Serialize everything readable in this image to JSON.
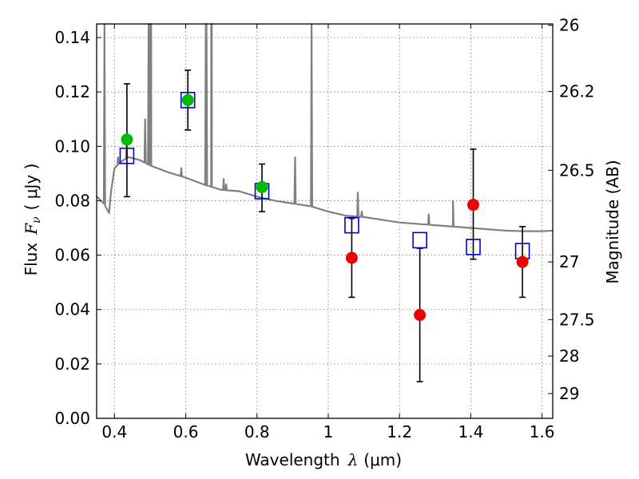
{
  "chart_data": {
    "type": "scatter",
    "xlabel_prefix": "Wavelength",
    "xlabel_symbol": "λ",
    "xlabel_unit": "(μm)",
    "ylabel_prefix": "Flux",
    "ylabel_symbol": "F",
    "ylabel_sub": "ν",
    "ylabel_unit": "( μJy )",
    "ylabel_right": "Magnitude (AB)",
    "xlim": [
      0.35,
      1.63
    ],
    "ylim": [
      0.0,
      0.145
    ],
    "grid": true,
    "x_ticks": [
      {
        "value": 0.4,
        "label": "0.4"
      },
      {
        "value": 0.6,
        "label": "0.6"
      },
      {
        "value": 0.8,
        "label": "0.8"
      },
      {
        "value": 1.0,
        "label": "1"
      },
      {
        "value": 1.2,
        "label": "1.2"
      },
      {
        "value": 1.4,
        "label": "1.4"
      },
      {
        "value": 1.6,
        "label": "1.6"
      }
    ],
    "y_ticks": [
      {
        "value": 0.0,
        "label": "0.00"
      },
      {
        "value": 0.02,
        "label": "0.02"
      },
      {
        "value": 0.04,
        "label": "0.04"
      },
      {
        "value": 0.06,
        "label": "0.06"
      },
      {
        "value": 0.08,
        "label": "0.08"
      },
      {
        "value": 0.1,
        "label": "0.10"
      },
      {
        "value": 0.12,
        "label": "0.12"
      },
      {
        "value": 0.14,
        "label": "0.14"
      }
    ],
    "right_ticks": [
      {
        "flux": 0.1445,
        "label": "26"
      },
      {
        "flux": 0.1202,
        "label": "26.2"
      },
      {
        "flux": 0.0912,
        "label": "26.5"
      },
      {
        "flux": 0.0575,
        "label": "27"
      },
      {
        "flux": 0.0363,
        "label": "27.5"
      },
      {
        "flux": 0.0229,
        "label": "28"
      },
      {
        "flux": 0.0091,
        "label": "29"
      }
    ],
    "colors": {
      "spectrum": "#808080",
      "detected": "#00bb00",
      "nondetected": "#ee0000",
      "model": "#0000cc",
      "errorbar": "#000000",
      "grid": "#777777"
    },
    "series": [
      {
        "marker": "green-circle",
        "points": [
          {
            "x": 0.435,
            "y": 0.1025,
            "err_lo": 0.0815,
            "err_hi": 0.123
          },
          {
            "x": 0.606,
            "y": 0.117,
            "err_lo": 0.106,
            "err_hi": 0.128
          },
          {
            "x": 0.814,
            "y": 0.085,
            "err_lo": 0.076,
            "err_hi": 0.0935
          }
        ]
      },
      {
        "marker": "red-circle",
        "points": [
          {
            "x": 1.066,
            "y": 0.059,
            "err_lo": 0.0445,
            "err_hi": 0.0735
          },
          {
            "x": 1.257,
            "y": 0.038,
            "err_lo": 0.0135,
            "err_hi": 0.0625
          },
          {
            "x": 1.407,
            "y": 0.0785,
            "err_lo": 0.0585,
            "err_hi": 0.099
          },
          {
            "x": 1.545,
            "y": 0.0575,
            "err_lo": 0.0445,
            "err_hi": 0.0705
          }
        ]
      },
      {
        "marker": "blue-open-square",
        "points": [
          {
            "x": 0.435,
            "y": 0.0965
          },
          {
            "x": 0.606,
            "y": 0.117
          },
          {
            "x": 0.814,
            "y": 0.0835
          },
          {
            "x": 1.066,
            "y": 0.071
          },
          {
            "x": 1.257,
            "y": 0.0655
          },
          {
            "x": 1.407,
            "y": 0.063
          },
          {
            "x": 1.545,
            "y": 0.0615
          }
        ]
      },
      {
        "marker": "line",
        "continuum": [
          [
            0.35,
            0.0815
          ],
          [
            0.37,
            0.079
          ],
          [
            0.385,
            0.0755
          ],
          [
            0.39,
            0.083
          ],
          [
            0.4,
            0.092
          ],
          [
            0.42,
            0.0945
          ],
          [
            0.44,
            0.096
          ],
          [
            0.47,
            0.095
          ],
          [
            0.5,
            0.093
          ],
          [
            0.55,
            0.0905
          ],
          [
            0.6,
            0.0885
          ],
          [
            0.65,
            0.086
          ],
          [
            0.7,
            0.084
          ],
          [
            0.75,
            0.0835
          ],
          [
            0.8,
            0.0815
          ],
          [
            0.85,
            0.08
          ],
          [
            0.9,
            0.079
          ],
          [
            0.95,
            0.078
          ],
          [
            1.0,
            0.076
          ],
          [
            1.05,
            0.0745
          ],
          [
            1.1,
            0.074
          ],
          [
            1.15,
            0.073
          ],
          [
            1.2,
            0.072
          ],
          [
            1.25,
            0.0715
          ],
          [
            1.3,
            0.071
          ],
          [
            1.35,
            0.0705
          ],
          [
            1.4,
            0.07
          ],
          [
            1.45,
            0.0695
          ],
          [
            1.5,
            0.069
          ],
          [
            1.55,
            0.0688
          ],
          [
            1.6,
            0.0688
          ],
          [
            1.63,
            0.069
          ]
        ],
        "emission_lines": [
          {
            "x": 0.372,
            "peak": 0.145
          },
          {
            "x": 0.4101,
            "peak": 0.096
          },
          {
            "x": 0.434,
            "peak": 0.1
          },
          {
            "x": 0.4861,
            "peak": 0.11
          },
          {
            "x": 0.4959,
            "peak": 0.145
          },
          {
            "x": 0.5007,
            "peak": 0.145
          },
          {
            "x": 0.5015,
            "peak": 0.145
          },
          {
            "x": 0.503,
            "peak": 0.145
          },
          {
            "x": 0.5875,
            "peak": 0.092
          },
          {
            "x": 0.6563,
            "peak": 0.145
          },
          {
            "x": 0.6583,
            "peak": 0.145
          },
          {
            "x": 0.6716,
            "peak": 0.145
          },
          {
            "x": 0.6731,
            "peak": 0.145
          },
          {
            "x": 0.7065,
            "peak": 0.088
          },
          {
            "x": 0.7136,
            "peak": 0.086
          },
          {
            "x": 0.9069,
            "peak": 0.096
          },
          {
            "x": 0.9532,
            "peak": 0.145
          },
          {
            "x": 1.083,
            "peak": 0.083
          },
          {
            "x": 1.094,
            "peak": 0.076
          },
          {
            "x": 1.282,
            "peak": 0.075
          },
          {
            "x": 1.35,
            "peak": 0.08
          }
        ]
      }
    ]
  }
}
